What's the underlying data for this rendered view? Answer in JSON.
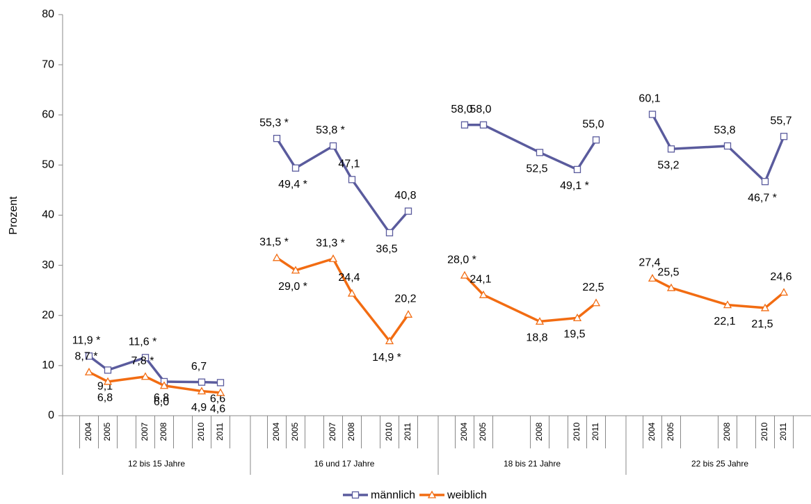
{
  "chart_data": {
    "type": "line",
    "ylabel": "Prozent",
    "ylim": [
      0,
      80
    ],
    "yticks": [
      0,
      10,
      20,
      30,
      40,
      50,
      60,
      70,
      80
    ],
    "groups": [
      {
        "label": "12 bis 15 Jahre",
        "x": [
          2004,
          2005,
          2007,
          2008,
          2010,
          2011
        ]
      },
      {
        "label": "16 und 17 Jahre",
        "x": [
          2004,
          2005,
          2007,
          2008,
          2010,
          2011
        ]
      },
      {
        "label": "18 bis 21 Jahre",
        "x": [
          2004,
          2005,
          2008,
          2010,
          2011
        ]
      },
      {
        "label": "22 bis 25 Jahre",
        "x": [
          2004,
          2005,
          2008,
          2010,
          2011
        ]
      }
    ],
    "series": [
      {
        "name": "männlich",
        "color": "#5a5b9d",
        "marker": "square",
        "values": [
          [
            11.9,
            9.1,
            11.6,
            6.8,
            6.7,
            6.6
          ],
          [
            55.3,
            49.4,
            53.8,
            47.1,
            36.5,
            40.8
          ],
          [
            58.0,
            58.0,
            52.5,
            49.1,
            55.0
          ],
          [
            60.1,
            53.2,
            53.8,
            46.7,
            55.7
          ]
        ],
        "value_labels": [
          [
            "11,9 *",
            "9,1",
            "11,6 *",
            "6,8",
            "6,7",
            "6,6"
          ],
          [
            "55,3 *",
            "49,4 *",
            "53,8 *",
            "47,1",
            "36,5",
            "40,8"
          ],
          [
            "58,0",
            "58,0",
            "52,5",
            "49,1 *",
            "55,0"
          ],
          [
            "60,1",
            "53,2",
            "53,8",
            "46,7 *",
            "55,7"
          ]
        ]
      },
      {
        "name": "weiblich",
        "color": "#f26c12",
        "marker": "triangle",
        "values": [
          [
            8.7,
            6.8,
            7.8,
            6.0,
            4.9,
            4.6
          ],
          [
            31.5,
            29.0,
            31.3,
            24.4,
            14.9,
            20.2
          ],
          [
            28.0,
            24.1,
            18.8,
            19.5,
            22.5
          ],
          [
            27.4,
            25.5,
            22.1,
            21.5,
            24.6
          ]
        ],
        "value_labels": [
          [
            "8,7 *",
            "6,8",
            "7,8 *",
            "6,0",
            "4,9",
            "4,6"
          ],
          [
            "31,5 *",
            "29,0 *",
            "31,3 *",
            "24,4",
            "14,9 *",
            "20,2"
          ],
          [
            "28,0 *",
            "24,1",
            "18,8",
            "19,5",
            "22,5"
          ],
          [
            "27,4",
            "25,5",
            "22,1",
            "21,5",
            "24,6"
          ]
        ]
      }
    ]
  }
}
